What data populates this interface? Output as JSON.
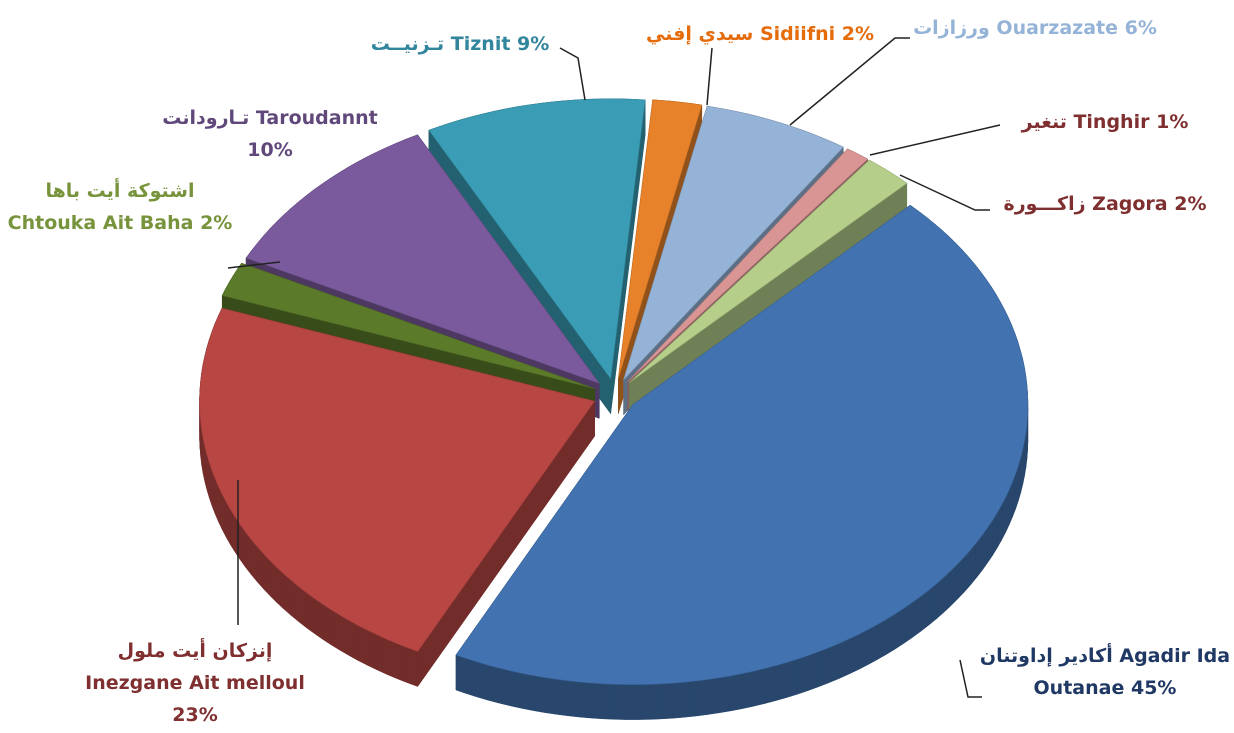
{
  "chart_data": {
    "type": "pie3d",
    "categories": [
      "سيدي إفني Sidiifni",
      "ورزازات Ouarzazate",
      "تنغير Tinghir",
      "زاكـــورة Zagora",
      "أكادير إداوتنان Agadir Ida Outanae",
      "إنزكان أيت ملول Inezgane Ait melloul",
      "اشتوكة أيت باها Chtouka Ait Baha",
      "تـارودانت Taroudannt",
      "تـزنيــت Tiznit"
    ],
    "values": [
      2,
      6,
      1,
      2,
      45,
      23,
      2,
      10,
      9
    ],
    "value_labels": [
      "2%",
      "6%",
      "1%",
      "2%",
      "45%",
      "23%",
      "2%",
      "10%",
      "9%"
    ],
    "colors": [
      "#e8822a",
      "#95b3d7",
      "#d99594",
      "#b5cf8a",
      "#4273b0",
      "#b84744",
      "#5b7a2a",
      "#7a5a9c",
      "#3a9cb5"
    ],
    "label_colors": [
      "#e46c0a",
      "#95b3d7",
      "#7f2f2f",
      "#7f2f2f",
      "#1f3864",
      "#7f2f2f",
      "#77933c",
      "#60497a",
      "#31859c"
    ]
  }
}
